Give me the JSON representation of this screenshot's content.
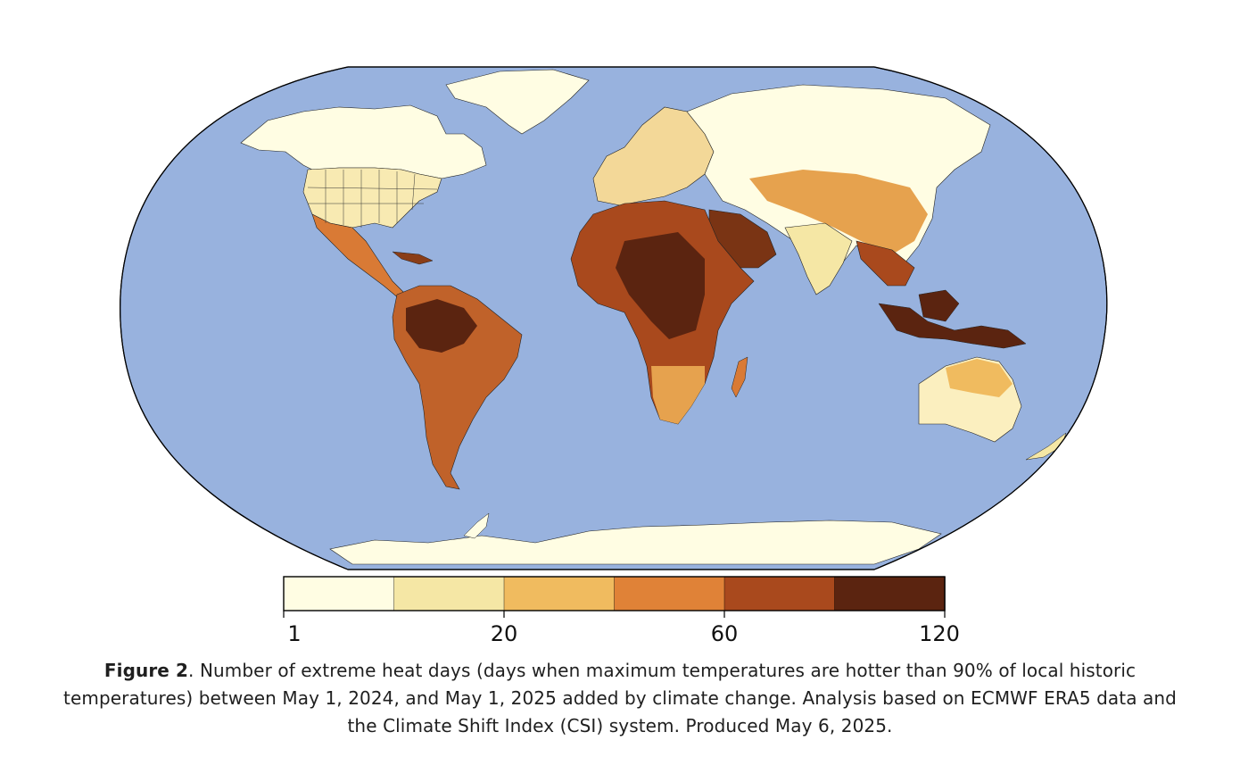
{
  "figure": {
    "label": "Figure 2",
    "caption": ". Number of extreme heat days (days when maximum temperatures are hotter than 90% of local historic temperatures) between May 1, 2024, and May 1, 2025 added by climate change. Analysis based on ECMWF ERA5 data and the Climate Shift Index (CSI) system. Produced May 6, 2025."
  },
  "map": {
    "projection": "Robinson",
    "ocean_color": "#98b2de",
    "land_base_color": "#fffde3",
    "outline_color": "#000000"
  },
  "colorbar": {
    "bin_colors": [
      "#fffde3",
      "#f5e7a5",
      "#f0bb5f",
      "#e08237",
      "#a9491d",
      "#5b2410"
    ],
    "ticks": [
      {
        "value": 1,
        "label": "1"
      },
      {
        "value": 20,
        "label": "20"
      },
      {
        "value": 60,
        "label": "60"
      },
      {
        "value": 120,
        "label": "120"
      }
    ],
    "range": [
      1,
      120
    ]
  }
}
